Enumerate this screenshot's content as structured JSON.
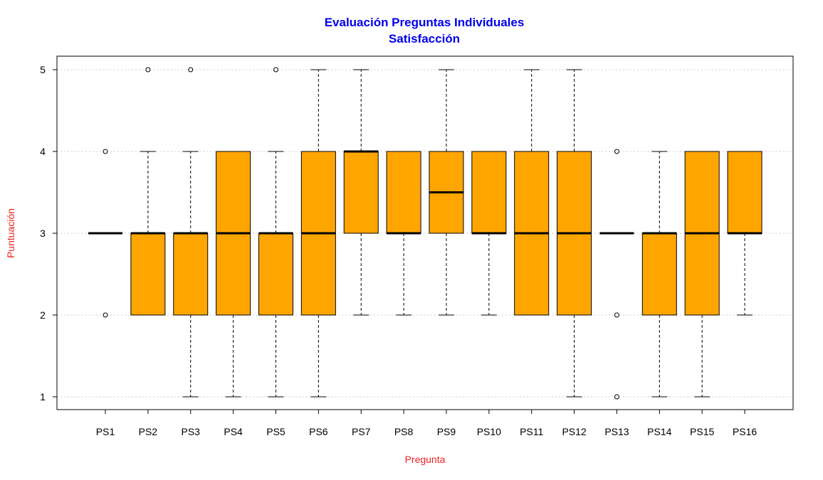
{
  "chart_data": {
    "type": "boxplot",
    "title": "Evaluación Preguntas Individuales",
    "subtitle": "Satisfacción",
    "xlabel": "Pregunta",
    "ylabel": "Puntuación",
    "ylim": [
      0.8,
      5.2
    ],
    "yticks": [
      "1",
      "2",
      "3",
      "4",
      "5"
    ],
    "grid": true,
    "colors": {
      "title": "#0000ee",
      "axis_labels": "#ee2222",
      "box_fill": "#ffa500",
      "grid": "#cccccc"
    },
    "categories": [
      "PS1",
      "PS2",
      "PS3",
      "PS4",
      "PS5",
      "PS6",
      "PS7",
      "PS8",
      "PS9",
      "PS10",
      "PS11",
      "PS12",
      "PS13",
      "PS14",
      "PS15",
      "PS16"
    ],
    "boxes": [
      {
        "name": "PS1",
        "min": 3,
        "q1": 3,
        "median": 3,
        "q3": 3,
        "max": 3,
        "outliers": [
          4,
          2
        ]
      },
      {
        "name": "PS2",
        "min": 2,
        "q1": 2,
        "median": 3,
        "q3": 3,
        "max": 4,
        "outliers": [
          5
        ]
      },
      {
        "name": "PS3",
        "min": 1,
        "q1": 2,
        "median": 3,
        "q3": 3,
        "max": 4,
        "outliers": [
          5
        ]
      },
      {
        "name": "PS4",
        "min": 1,
        "q1": 2,
        "median": 3,
        "q3": 4,
        "max": 4,
        "outliers": []
      },
      {
        "name": "PS5",
        "min": 1,
        "q1": 2,
        "median": 3,
        "q3": 3,
        "max": 4,
        "outliers": [
          5
        ]
      },
      {
        "name": "PS6",
        "min": 1,
        "q1": 2,
        "median": 3,
        "q3": 4,
        "max": 5,
        "outliers": []
      },
      {
        "name": "PS7",
        "min": 2,
        "q1": 3,
        "median": 4,
        "q3": 4,
        "max": 5,
        "outliers": []
      },
      {
        "name": "PS8",
        "min": 2,
        "q1": 3,
        "median": 3,
        "q3": 4,
        "max": 4,
        "outliers": []
      },
      {
        "name": "PS9",
        "min": 2,
        "q1": 3,
        "median": 3.5,
        "q3": 4,
        "max": 5,
        "outliers": []
      },
      {
        "name": "PS10",
        "min": 2,
        "q1": 3,
        "median": 3,
        "q3": 4,
        "max": 4,
        "outliers": []
      },
      {
        "name": "PS11",
        "min": 2,
        "q1": 2,
        "median": 3,
        "q3": 4,
        "max": 5,
        "outliers": []
      },
      {
        "name": "PS12",
        "min": 1,
        "q1": 2,
        "median": 3,
        "q3": 4,
        "max": 5,
        "outliers": []
      },
      {
        "name": "PS13",
        "min": 3,
        "q1": 3,
        "median": 3,
        "q3": 3,
        "max": 3,
        "outliers": [
          4,
          2,
          1
        ]
      },
      {
        "name": "PS14",
        "min": 1,
        "q1": 2,
        "median": 3,
        "q3": 3,
        "max": 4,
        "outliers": []
      },
      {
        "name": "PS15",
        "min": 1,
        "q1": 2,
        "median": 3,
        "q3": 4,
        "max": 4,
        "outliers": []
      },
      {
        "name": "PS16",
        "min": 2,
        "q1": 3,
        "median": 3,
        "q3": 4,
        "max": 4,
        "outliers": []
      }
    ]
  }
}
